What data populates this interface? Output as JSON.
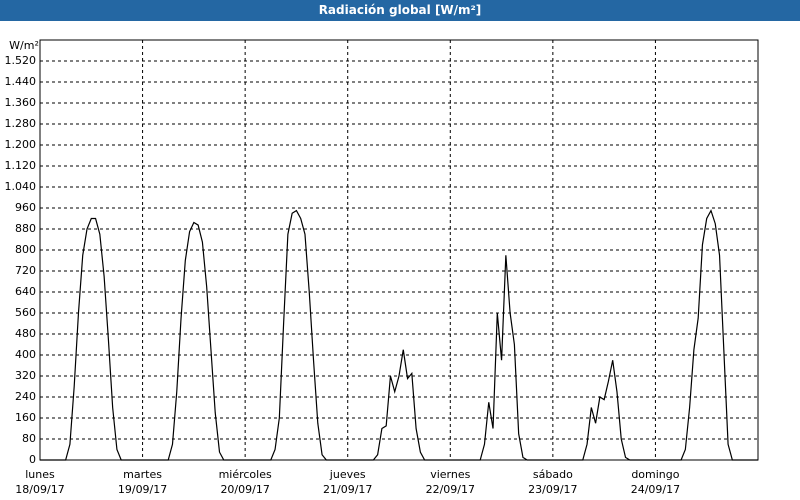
{
  "chart_data": {
    "type": "line",
    "title": "Radiación global [W/m²]",
    "y_label": "W/m²",
    "x": [
      0,
      1,
      2,
      3,
      4,
      5,
      6,
      7,
      8,
      9,
      10,
      11,
      12,
      13,
      14,
      15,
      16,
      17,
      18,
      19,
      20,
      21,
      22,
      23,
      24,
      25,
      26,
      27,
      28,
      29,
      30,
      31,
      32,
      33,
      34,
      35,
      36,
      37,
      38,
      39,
      40,
      41,
      42,
      43,
      44,
      45,
      46,
      47,
      48,
      49,
      50,
      51,
      52,
      53,
      54,
      55,
      56,
      57,
      58,
      59,
      60,
      61,
      62,
      63,
      64,
      65,
      66,
      67,
      68,
      69,
      70,
      71,
      72,
      73,
      74,
      75,
      76,
      77,
      78,
      79,
      80,
      81,
      82,
      83,
      84,
      85,
      86,
      87,
      88,
      89,
      90,
      91,
      92,
      93,
      94,
      95,
      96,
      97,
      98,
      99,
      100,
      101,
      102,
      103,
      104,
      105,
      106,
      107,
      108,
      109,
      110,
      111,
      112,
      113,
      114,
      115,
      116,
      117,
      118,
      119,
      120,
      121,
      122,
      123,
      124,
      125,
      126,
      127,
      128,
      129,
      130,
      131,
      132,
      133,
      134,
      135,
      136,
      137,
      138,
      139,
      140,
      141,
      142,
      143,
      144,
      145,
      146,
      147,
      148,
      149,
      150,
      151,
      152,
      153,
      154,
      155,
      156,
      157,
      158,
      159,
      160,
      161,
      162,
      163,
      164,
      165,
      166,
      167,
      168
    ],
    "series": [
      {
        "color": "#000000",
        "values": [
          0,
          0,
          0,
          0,
          0,
          0,
          0,
          60,
          280,
          560,
          780,
          880,
          920,
          920,
          860,
          700,
          460,
          200,
          40,
          0,
          0,
          0,
          0,
          0,
          0,
          0,
          0,
          0,
          0,
          0,
          0,
          60,
          260,
          540,
          760,
          870,
          905,
          895,
          830,
          660,
          420,
          180,
          30,
          0,
          0,
          0,
          0,
          0,
          0,
          0,
          0,
          0,
          0,
          0,
          0,
          40,
          160,
          520,
          860,
          940,
          950,
          920,
          860,
          640,
          380,
          140,
          20,
          0,
          0,
          0,
          0,
          0,
          0,
          0,
          0,
          0,
          0,
          0,
          0,
          20,
          120,
          130,
          320,
          260,
          320,
          420,
          310,
          330,
          120,
          30,
          0,
          0,
          0,
          0,
          0,
          0,
          0,
          0,
          0,
          0,
          0,
          0,
          0,
          0,
          60,
          220,
          120,
          560,
          380,
          780,
          560,
          440,
          100,
          10,
          0,
          0,
          0,
          0,
          0,
          0,
          0,
          0,
          0,
          0,
          0,
          0,
          0,
          0,
          60,
          200,
          140,
          240,
          230,
          300,
          380,
          260,
          80,
          10,
          0,
          0,
          0,
          0,
          0,
          0,
          0,
          0,
          0,
          0,
          0,
          0,
          0,
          40,
          200,
          420,
          540,
          820,
          920,
          950,
          900,
          780,
          420,
          60,
          0,
          0,
          0,
          0,
          0,
          0,
          0
        ]
      }
    ],
    "xlim": [
      0,
      168
    ],
    "xticks": [
      {
        "value": 0,
        "label": "lunes",
        "date": "18/09/17"
      },
      {
        "value": 24,
        "label": "martes",
        "date": "19/09/17"
      },
      {
        "value": 48,
        "label": "miércoles",
        "date": "20/09/17"
      },
      {
        "value": 72,
        "label": "jueves",
        "date": "21/09/17"
      },
      {
        "value": 96,
        "label": "viernes",
        "date": "22/09/17"
      },
      {
        "value": 120,
        "label": "sábado",
        "date": "23/09/17"
      },
      {
        "value": 144,
        "label": "domingo",
        "date": "24/09/17"
      }
    ],
    "ylim": [
      0,
      1600
    ],
    "yticks": [
      0,
      80,
      160,
      240,
      320,
      400,
      480,
      560,
      640,
      720,
      800,
      880,
      960,
      {
        "value": 1040,
        "label": "1.040"
      },
      {
        "value": 1120,
        "label": "1.120"
      },
      {
        "value": 1200,
        "label": "1.200"
      },
      {
        "value": 1280,
        "label": "1.280"
      },
      {
        "value": 1360,
        "label": "1.360"
      },
      {
        "value": 1440,
        "label": "1.440"
      },
      {
        "value": 1520,
        "label": "1.520"
      }
    ],
    "grid": true
  }
}
